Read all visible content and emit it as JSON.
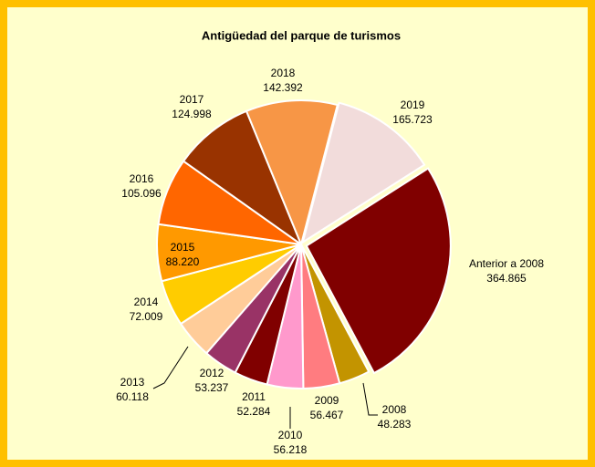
{
  "chart_data": {
    "type": "pie",
    "title": "Antigüedad del parque de turismos",
    "categories": [
      "Anterior a 2008",
      "2008",
      "2009",
      "2010",
      "2011",
      "2012",
      "2013",
      "2014",
      "2015",
      "2016",
      "2017",
      "2018",
      "2019"
    ],
    "values": [
      364865,
      48283,
      56467,
      56218,
      52284,
      53237,
      60118,
      72009,
      88220,
      105096,
      124998,
      142392,
      165723
    ],
    "value_labels": [
      "364.865",
      "48.283",
      "56.467",
      "56.218",
      "52.284",
      "53.237",
      "60.118",
      "72.009",
      "88.220",
      "105.096",
      "124.998",
      "142.392",
      "165.723"
    ],
    "colors": [
      "#800000",
      "#c39400",
      "#ff7c80",
      "#ff99cc",
      "#800000",
      "#993366",
      "#ffcc99",
      "#ffcc00",
      "#ff9900",
      "#ff6600",
      "#993300",
      "#f79646",
      "#f2dcdb"
    ]
  }
}
